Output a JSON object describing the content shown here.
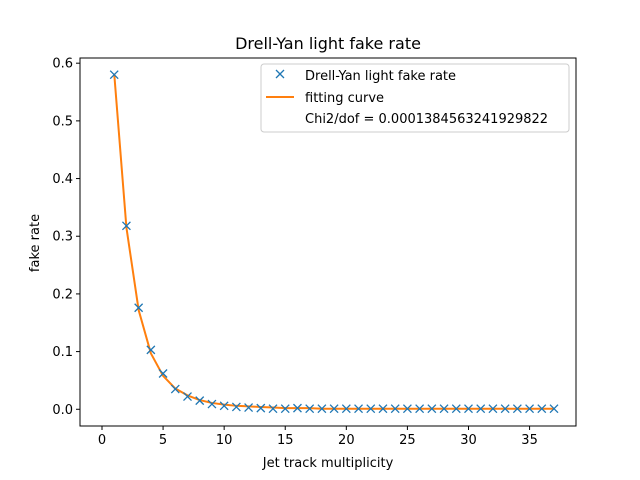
{
  "chart_data": {
    "type": "scatter",
    "title": "Drell-Yan light fake rate",
    "xlabel": "Jet track multiplicity",
    "ylabel": "fake rate",
    "xlim": [
      -1.8,
      38.8
    ],
    "ylim": [
      -0.029,
      0.609
    ],
    "xticks": [
      0,
      5,
      10,
      15,
      20,
      25,
      30,
      35
    ],
    "yticks": [
      0.0,
      0.1,
      0.2,
      0.3,
      0.4,
      0.5,
      0.6
    ],
    "xtick_labels": [
      "0",
      "5",
      "10",
      "15",
      "20",
      "25",
      "30",
      "35"
    ],
    "ytick_labels": [
      "0.0",
      "0.1",
      "0.2",
      "0.3",
      "0.4",
      "0.5",
      "0.6"
    ],
    "grid": false,
    "legend_position": "top-right",
    "legend_extra_text": "Chi2/dof = 0.0001384563241929822",
    "series": [
      {
        "name": "Drell-Yan light fake rate",
        "kind": "marker-x",
        "color": "#1f77b4",
        "x": [
          1,
          2,
          3,
          4,
          5,
          6,
          7,
          8,
          9,
          10,
          11,
          12,
          13,
          14,
          15,
          16,
          17,
          18,
          19,
          20,
          21,
          22,
          23,
          24,
          25,
          26,
          27,
          28,
          29,
          30,
          31,
          32,
          33,
          34,
          35,
          36,
          37
        ],
        "y": [
          0.58,
          0.318,
          0.176,
          0.103,
          0.062,
          0.035,
          0.022,
          0.015,
          0.009,
          0.006,
          0.004,
          0.003,
          0.002,
          0.001,
          0.001,
          0.002,
          0.001,
          0.001,
          0.001,
          0.001,
          0.001,
          0.001,
          0.001,
          0.001,
          0.001,
          0.001,
          0.001,
          0.001,
          0.001,
          0.001,
          0.001,
          0.001,
          0.001,
          0.001,
          0.001,
          0.001,
          0.001
        ]
      },
      {
        "name": "fitting curve",
        "kind": "line",
        "color": "#ff7f0e",
        "x": [
          1,
          2,
          3,
          4,
          5,
          6,
          7,
          8,
          9,
          10,
          11,
          12,
          13,
          14,
          15,
          16,
          17,
          18,
          19,
          20,
          21,
          22,
          23,
          24,
          25,
          26,
          27,
          28,
          29,
          30,
          31,
          32,
          33,
          34,
          35,
          36,
          37
        ],
        "y": [
          0.582,
          0.315,
          0.172,
          0.097,
          0.058,
          0.036,
          0.024,
          0.016,
          0.011,
          0.008,
          0.006,
          0.005,
          0.004,
          0.003,
          0.002,
          0.002,
          0.002,
          0.001,
          0.001,
          0.001,
          0.001,
          0.001,
          0.001,
          0.001,
          0.001,
          0.001,
          0.001,
          0.001,
          0.001,
          0.001,
          0.001,
          0.001,
          0.001,
          0.001,
          0.001,
          0.001,
          0.001
        ]
      }
    ]
  }
}
